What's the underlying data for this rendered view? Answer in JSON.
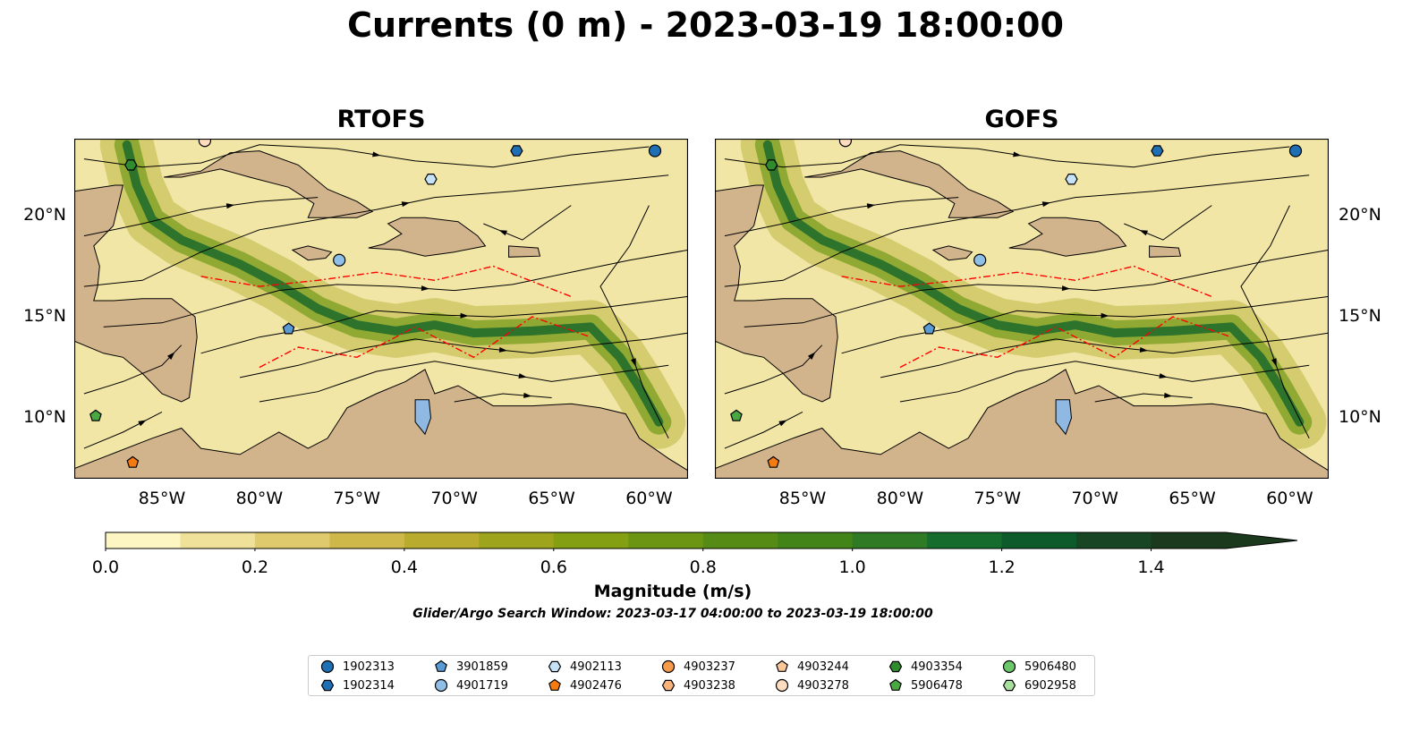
{
  "title": "Currents (0 m) - 2023-03-19 18:00:00",
  "panels": [
    {
      "title": "RTOFS"
    },
    {
      "title": "GOFS"
    }
  ],
  "axes": {
    "lon_ticks": [
      "85°W",
      "80°W",
      "75°W",
      "70°W",
      "65°W",
      "60°W"
    ],
    "lon_values": [
      -85,
      -80,
      -75,
      -70,
      -65,
      -60
    ],
    "lat_ticks": [
      "20°N",
      "15°N",
      "10°N"
    ],
    "lat_values": [
      20,
      15,
      10
    ],
    "lon_range": [
      -89.5,
      -58.0
    ],
    "lat_range": [
      7.0,
      23.8
    ]
  },
  "colorbar": {
    "label": "Magnitude (m/s)",
    "tick_labels": [
      "0.0",
      "0.2",
      "0.4",
      "0.6",
      "0.8",
      "1.0",
      "1.2",
      "1.4"
    ],
    "tick_values": [
      0.0,
      0.2,
      0.4,
      0.6,
      0.8,
      1.0,
      1.2,
      1.4
    ],
    "range": [
      0.0,
      1.5
    ],
    "extend": "max",
    "colors": [
      "#fdf6c3",
      "#efe09a",
      "#dfca6e",
      "#cfb84a",
      "#b9ab2e",
      "#9ea41c",
      "#849f12",
      "#6b9512",
      "#568c16",
      "#438419",
      "#2f7a24",
      "#166c2c",
      "#0d5a2a",
      "#184625",
      "#1b3a1d"
    ]
  },
  "search_window": "Glider/Argo Search Window: 2023-03-17 04:00:00 to 2023-03-19 18:00:00",
  "legend": {
    "items": [
      {
        "id": "1902313",
        "marker": "circle",
        "color": "#1f6fb4"
      },
      {
        "id": "1902314",
        "marker": "hexagon",
        "color": "#1f6fb4"
      },
      {
        "id": "3901859",
        "marker": "pentagon",
        "color": "#5a9bd5"
      },
      {
        "id": "4901719",
        "marker": "circle",
        "color": "#8fbfe6"
      },
      {
        "id": "4902113",
        "marker": "hexagon",
        "color": "#c6e2f6"
      },
      {
        "id": "4902476",
        "marker": "pentagon",
        "color": "#f47a12"
      },
      {
        "id": "4903237",
        "marker": "circle",
        "color": "#f79a4a"
      },
      {
        "id": "4903238",
        "marker": "hexagon",
        "color": "#f9b27a"
      },
      {
        "id": "4903244",
        "marker": "pentagon",
        "color": "#fac79b"
      },
      {
        "id": "4903278",
        "marker": "circle",
        "color": "#fddcbf"
      },
      {
        "id": "4903354",
        "marker": "hexagon",
        "color": "#2e8b2e"
      },
      {
        "id": "5906478",
        "marker": "pentagon",
        "color": "#4aa843"
      },
      {
        "id": "5906480",
        "marker": "circle",
        "color": "#6cc66a"
      },
      {
        "id": "6902958",
        "marker": "hexagon",
        "color": "#a8df9c"
      }
    ]
  },
  "floats": [
    {
      "id": "1902313",
      "lon": -59.7,
      "lat": 23.2
    },
    {
      "id": "1902314",
      "lon": -66.8,
      "lat": 23.2
    },
    {
      "id": "3901859",
      "lon": -78.5,
      "lat": 14.4
    },
    {
      "id": "4901719",
      "lon": -75.9,
      "lat": 17.8
    },
    {
      "id": "4902113",
      "lon": -71.2,
      "lat": 21.8
    },
    {
      "id": "4902476",
      "lon": -86.5,
      "lat": 7.8
    },
    {
      "id": "4903278",
      "lon": -82.8,
      "lat": 23.7
    },
    {
      "id": "4903354",
      "lon": -86.6,
      "lat": 22.5
    },
    {
      "id": "5906478",
      "lon": -88.4,
      "lat": 10.1
    }
  ]
}
